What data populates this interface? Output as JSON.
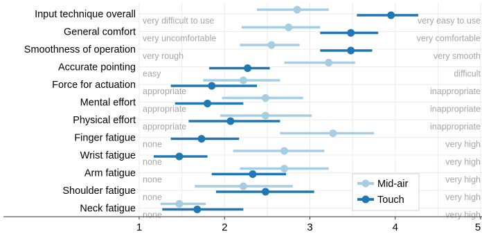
{
  "colors": {
    "mid_air": "#a6cee3",
    "touch": "#1f78b4",
    "grid": "#ebebeb",
    "anchor_text": "#a6a6a6"
  },
  "chart_data": {
    "type": "dot-errorbar",
    "xlim": [
      1,
      5
    ],
    "x_ticks": [
      "1",
      "2",
      "3",
      "4",
      "5"
    ],
    "grid": true,
    "legend_position": "bottom-right",
    "categories": [
      "Input technique overall",
      "General comfort",
      "Smoothness of operation",
      "Accurate pointing",
      "Force for actuation",
      "Mental effort",
      "Physical effort",
      "Finger fatigue",
      "Wrist fatigue",
      "Arm fatigue",
      "Shoulder fatigue",
      "Neck fatigue"
    ],
    "left_anchors": [
      "very difficult to use",
      "very uncomfortable",
      "very rough",
      "easy",
      "appropriate",
      "appropriate",
      "appropriate",
      "none",
      "none",
      "none",
      "none",
      "none"
    ],
    "right_anchors": [
      "very easy to use",
      "very comfortable",
      "very smooth",
      "difficult",
      "inappropriate",
      "inappropriate",
      "inappropriate",
      "very high",
      "very high",
      "very high",
      "very high",
      "very high"
    ],
    "series": [
      {
        "name": "Mid-air",
        "mean": [
          2.85,
          2.75,
          2.55,
          3.22,
          2.22,
          2.48,
          2.48,
          3.27,
          2.7,
          2.7,
          2.22,
          1.47
        ],
        "lower": [
          2.38,
          2.2,
          2.18,
          2.7,
          1.75,
          1.97,
          1.95,
          2.65,
          2.1,
          2.18,
          1.65,
          1.25
        ],
        "upper": [
          3.22,
          3.12,
          2.88,
          3.53,
          2.65,
          2.92,
          3.02,
          3.75,
          3.17,
          3.22,
          2.8,
          1.78
        ]
      },
      {
        "name": "Touch",
        "mean": [
          3.95,
          3.48,
          3.48,
          2.27,
          1.85,
          1.8,
          2.07,
          1.73,
          1.47,
          2.33,
          2.48,
          1.68
        ],
        "lower": [
          3.55,
          3.12,
          3.12,
          1.82,
          1.37,
          1.42,
          1.58,
          1.37,
          1.17,
          1.85,
          1.9,
          1.27
        ],
        "upper": [
          4.27,
          3.8,
          3.73,
          2.53,
          2.38,
          2.22,
          2.65,
          2.17,
          1.8,
          2.72,
          3.05,
          2.22
        ]
      }
    ]
  }
}
